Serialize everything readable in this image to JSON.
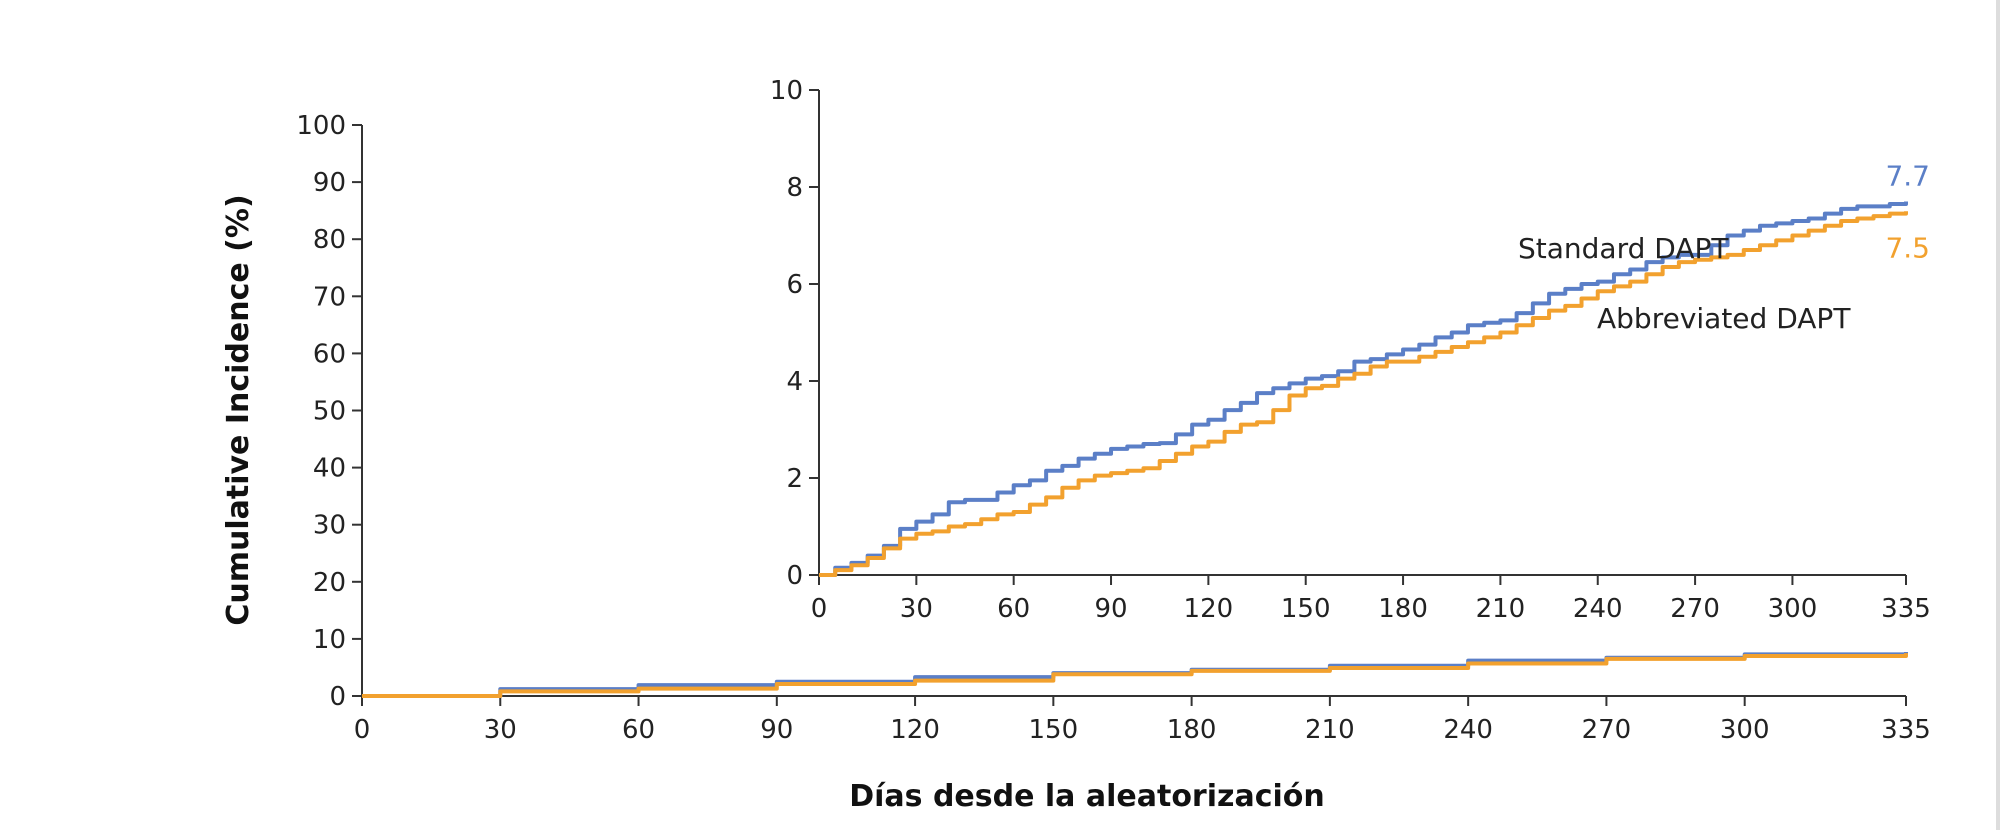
{
  "chart_data": [
    {
      "id": "main",
      "type": "line",
      "xlabel": "Días desde la aleatorización",
      "ylabel": "Cumulative Incidence (%)",
      "xlim": [
        0,
        335
      ],
      "ylim": [
        0,
        100
      ],
      "xticks": [
        "0",
        "30",
        "60",
        "90",
        "120",
        "150",
        "180",
        "210",
        "240",
        "270",
        "300",
        "335"
      ],
      "yticks": [
        "0",
        "10",
        "20",
        "30",
        "40",
        "50",
        "60",
        "70",
        "80",
        "90",
        "100"
      ],
      "grid": false,
      "series": [
        {
          "name": "Standard DAPT",
          "color": "#5b7fc7",
          "x": [
            0,
            30,
            60,
            90,
            120,
            150,
            180,
            210,
            240,
            270,
            300,
            335
          ],
          "y": [
            0,
            1.2,
            1.9,
            2.5,
            3.3,
            4.0,
            4.6,
            5.3,
            6.2,
            6.7,
            7.3,
            7.7
          ]
        },
        {
          "name": "Abbreviated DAPT",
          "color": "#f2a12e",
          "x": [
            0,
            30,
            60,
            90,
            120,
            150,
            180,
            210,
            240,
            270,
            300,
            335
          ],
          "y": [
            0,
            0.8,
            1.3,
            2.1,
            2.7,
            3.8,
            4.4,
            4.9,
            5.7,
            6.5,
            7.0,
            7.5
          ]
        }
      ]
    },
    {
      "id": "inset",
      "type": "line",
      "xlim": [
        0,
        335
      ],
      "ylim": [
        0,
        10
      ],
      "xticks": [
        "0",
        "30",
        "60",
        "90",
        "120",
        "150",
        "180",
        "210",
        "240",
        "270",
        "300",
        "335"
      ],
      "yticks": [
        "0",
        "2",
        "4",
        "6",
        "8",
        "10"
      ],
      "grid": false,
      "series": [
        {
          "name": "Standard DAPT",
          "color": "#5b7fc7",
          "end_label": "7.7",
          "x": [
            0,
            5,
            10,
            15,
            20,
            25,
            30,
            35,
            40,
            45,
            50,
            55,
            60,
            65,
            70,
            75,
            80,
            85,
            90,
            95,
            100,
            105,
            110,
            115,
            120,
            125,
            130,
            135,
            140,
            145,
            150,
            155,
            160,
            165,
            170,
            175,
            180,
            185,
            190,
            195,
            200,
            205,
            210,
            215,
            220,
            225,
            230,
            235,
            240,
            245,
            250,
            255,
            260,
            265,
            270,
            275,
            280,
            285,
            290,
            295,
            300,
            305,
            310,
            315,
            320,
            325,
            330,
            335
          ],
          "y": [
            0,
            0.15,
            0.25,
            0.4,
            0.6,
            0.95,
            1.1,
            1.25,
            1.5,
            1.55,
            1.55,
            1.7,
            1.85,
            1.95,
            2.15,
            2.25,
            2.4,
            2.5,
            2.6,
            2.65,
            2.7,
            2.72,
            2.9,
            3.1,
            3.2,
            3.4,
            3.55,
            3.75,
            3.85,
            3.95,
            4.05,
            4.1,
            4.2,
            4.4,
            4.45,
            4.55,
            4.65,
            4.75,
            4.9,
            5.0,
            5.15,
            5.2,
            5.25,
            5.4,
            5.6,
            5.8,
            5.9,
            6.0,
            6.05,
            6.2,
            6.3,
            6.45,
            6.55,
            6.6,
            6.6,
            6.8,
            7.0,
            7.1,
            7.2,
            7.25,
            7.3,
            7.35,
            7.45,
            7.55,
            7.6,
            7.6,
            7.65,
            7.7
          ]
        },
        {
          "name": "Abbreviated DAPT",
          "color": "#f2a12e",
          "end_label": "7.5",
          "x": [
            0,
            5,
            10,
            15,
            20,
            25,
            30,
            35,
            40,
            45,
            50,
            55,
            60,
            65,
            70,
            75,
            80,
            85,
            90,
            95,
            100,
            105,
            110,
            115,
            120,
            125,
            130,
            135,
            140,
            145,
            150,
            155,
            160,
            165,
            170,
            175,
            180,
            185,
            190,
            195,
            200,
            205,
            210,
            215,
            220,
            225,
            230,
            235,
            240,
            245,
            250,
            255,
            260,
            265,
            270,
            275,
            280,
            285,
            290,
            295,
            300,
            305,
            310,
            315,
            320,
            325,
            330,
            335
          ],
          "y": [
            0,
            0.1,
            0.2,
            0.35,
            0.55,
            0.75,
            0.85,
            0.9,
            1.0,
            1.05,
            1.15,
            1.25,
            1.3,
            1.45,
            1.6,
            1.8,
            1.95,
            2.05,
            2.1,
            2.15,
            2.2,
            2.35,
            2.5,
            2.65,
            2.75,
            2.95,
            3.1,
            3.15,
            3.4,
            3.7,
            3.85,
            3.9,
            4.05,
            4.15,
            4.3,
            4.4,
            4.4,
            4.5,
            4.6,
            4.7,
            4.8,
            4.9,
            5.0,
            5.15,
            5.3,
            5.45,
            5.55,
            5.7,
            5.85,
            5.95,
            6.05,
            6.2,
            6.35,
            6.45,
            6.5,
            6.55,
            6.6,
            6.7,
            6.8,
            6.9,
            7.0,
            7.1,
            7.2,
            7.3,
            7.35,
            7.4,
            7.45,
            7.5
          ]
        }
      ]
    }
  ]
}
